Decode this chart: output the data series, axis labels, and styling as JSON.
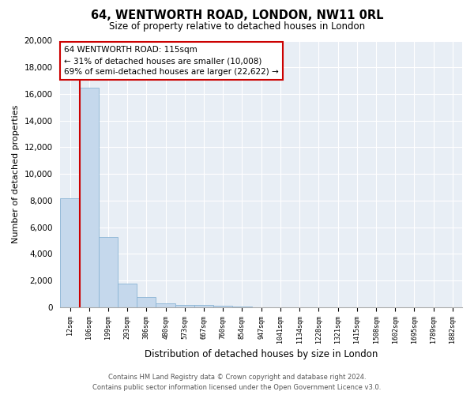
{
  "title": "64, WENTWORTH ROAD, LONDON, NW11 0RL",
  "subtitle": "Size of property relative to detached houses in London",
  "xlabel": "Distribution of detached houses by size in London",
  "ylabel": "Number of detached properties",
  "bar_color": "#c5d8ec",
  "bar_edge_color": "#8ab4d4",
  "plot_bg_color": "#e8eef5",
  "grid_color": "#ffffff",
  "categories": [
    "12sqm",
    "106sqm",
    "199sqm",
    "293sqm",
    "386sqm",
    "480sqm",
    "573sqm",
    "667sqm",
    "760sqm",
    "854sqm",
    "947sqm",
    "1041sqm",
    "1134sqm",
    "1228sqm",
    "1321sqm",
    "1415sqm",
    "1508sqm",
    "1602sqm",
    "1695sqm",
    "1789sqm",
    "1882sqm"
  ],
  "values": [
    8200,
    16500,
    5300,
    1800,
    750,
    300,
    200,
    150,
    100,
    50,
    0,
    0,
    0,
    0,
    0,
    0,
    0,
    0,
    0,
    0,
    0
  ],
  "ylim": [
    0,
    20000
  ],
  "yticks": [
    0,
    2000,
    4000,
    6000,
    8000,
    10000,
    12000,
    14000,
    16000,
    18000,
    20000
  ],
  "property_label": "64 WENTWORTH ROAD: 115sqm",
  "annotation_line1": "← 31% of detached houses are smaller (10,008)",
  "annotation_line2": "69% of semi-detached houses are larger (22,622) →",
  "footer_line1": "Contains HM Land Registry data © Crown copyright and database right 2024.",
  "footer_line2": "Contains public sector information licensed under the Open Government Licence v3.0."
}
